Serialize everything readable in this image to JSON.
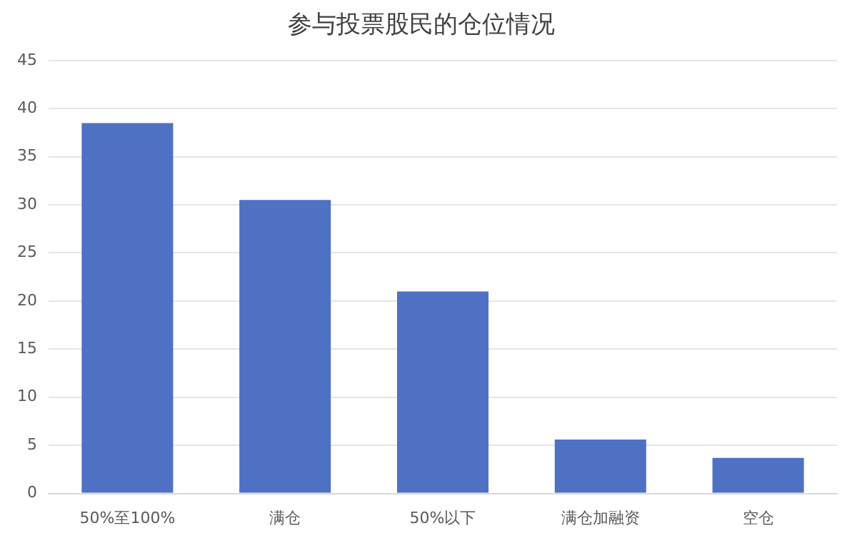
{
  "chart_data": {
    "type": "bar",
    "title": "参与投票股民的仓位情况",
    "categories": [
      "50%至100%",
      "满仓",
      "50%以下",
      "满仓加融资",
      "空仓"
    ],
    "values": [
      38.5,
      30.5,
      21.0,
      5.6,
      3.7
    ],
    "color": "#4f71c4",
    "ylim": [
      0,
      45
    ],
    "yticks": [
      0,
      5,
      10,
      15,
      20,
      25,
      30,
      35,
      40,
      45
    ],
    "grid": "y"
  }
}
